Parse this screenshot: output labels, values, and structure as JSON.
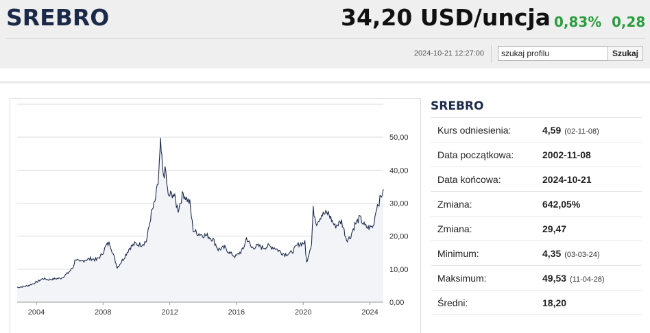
{
  "header": {
    "title": "SREBRO",
    "price": "34,20 USD/uncja",
    "change_pct": "0,83%",
    "change_abs": "0,28",
    "timestamp": "2024-10-21 12:27:00",
    "search_value": "szukaj profilu",
    "search_button": "Szukaj"
  },
  "colors": {
    "brand": "#1c2a4a",
    "positive": "#2a9d3e",
    "line": "#1c2a4a",
    "area": "#f2f4f8"
  },
  "panel": {
    "title": "SREBRO",
    "rows": [
      {
        "label": "Kurs odniesienia:",
        "value": "4,59",
        "sub": "(02-11-08)"
      },
      {
        "label": "Data początkowa:",
        "value": "2002-11-08",
        "sub": ""
      },
      {
        "label": "Data końcowa:",
        "value": "2024-10-21",
        "sub": ""
      },
      {
        "label": "Zmiana:",
        "value": "642,05%",
        "sub": ""
      },
      {
        "label": "Zmiana:",
        "value": "29,47",
        "sub": ""
      },
      {
        "label": "Minimum:",
        "value": "4,35",
        "sub": "(03-03-24)"
      },
      {
        "label": "Maksimum:",
        "value": "49,53",
        "sub": "(11-04-28)"
      },
      {
        "label": "Średni:",
        "value": "18,20",
        "sub": ""
      }
    ]
  },
  "chart_data": {
    "type": "area",
    "title": "",
    "xlabel": "",
    "ylabel": "",
    "xlim": [
      2002.85,
      2024.8
    ],
    "ylim": [
      0,
      60
    ],
    "x_ticks": [
      "2004",
      "2008",
      "2012",
      "2016",
      "2020",
      "2024"
    ],
    "y_ticks": [
      "0,00",
      "10,00",
      "20,00",
      "30,00",
      "40,00",
      "50,00"
    ],
    "grid": true,
    "series": [
      {
        "x": [
          2002.85,
          2003.2,
          2003.5,
          2003.9,
          2004.2,
          2004.4,
          2004.7,
          2005.0,
          2005.5,
          2005.9,
          2006.2,
          2006.35,
          2006.6,
          2006.9,
          2007.3,
          2007.6,
          2007.9,
          2008.2,
          2008.4,
          2008.7,
          2008.85,
          2009.2,
          2009.6,
          2009.9,
          2010.3,
          2010.6,
          2010.9,
          2011.1,
          2011.3,
          2011.45,
          2011.6,
          2011.75,
          2011.9,
          2012.2,
          2012.5,
          2012.8,
          2013.2,
          2013.4,
          2013.6,
          2013.9,
          2014.3,
          2014.6,
          2014.9,
          2015.3,
          2015.7,
          2015.95,
          2016.4,
          2016.6,
          2016.9,
          2017.3,
          2017.6,
          2017.9,
          2018.3,
          2018.7,
          2018.9,
          2019.3,
          2019.7,
          2019.9,
          2020.1,
          2020.2,
          2020.5,
          2020.6,
          2020.8,
          2021.1,
          2021.5,
          2021.9,
          2022.3,
          2022.6,
          2022.8,
          2023.1,
          2023.4,
          2023.7,
          2023.9,
          2024.2,
          2024.4,
          2024.6,
          2024.8
        ],
        "y": [
          4.5,
          4.7,
          5.0,
          5.8,
          6.6,
          7.2,
          6.8,
          7.0,
          7.3,
          8.8,
          10.5,
          13.2,
          12.0,
          12.8,
          13.2,
          12.8,
          14.2,
          17.2,
          18.0,
          13.0,
          10.5,
          13.0,
          16.5,
          17.6,
          17.5,
          18.5,
          27.0,
          30.0,
          36.0,
          48.0,
          38.0,
          40.0,
          32.0,
          33.0,
          28.0,
          33.0,
          30.0,
          22.0,
          21.0,
          20.5,
          20.0,
          19.0,
          16.0,
          16.5,
          14.5,
          13.8,
          16.0,
          19.5,
          16.5,
          17.0,
          16.5,
          17.0,
          16.5,
          15.0,
          14.5,
          15.0,
          17.5,
          17.8,
          18.0,
          12.0,
          18.0,
          28.0,
          24.0,
          26.5,
          27.0,
          23.0,
          24.5,
          19.0,
          19.5,
          23.5,
          25.5,
          23.0,
          22.5,
          23.0,
          29.0,
          31.0,
          34.2
        ]
      }
    ]
  }
}
